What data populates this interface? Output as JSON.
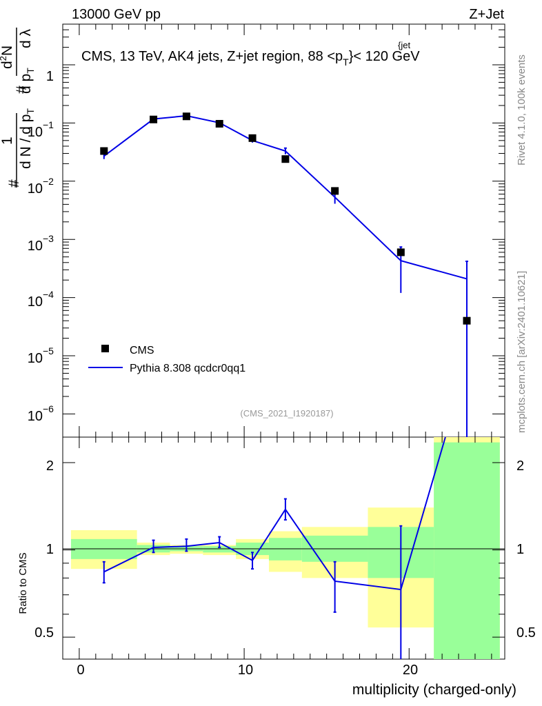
{
  "header": {
    "left": "13000 GeV pp",
    "right": "Z+Jet"
  },
  "side_labels": {
    "rivet": "Rivet 4.1.0,  100k events",
    "source": "mcplots.cern.ch [arXiv:2401.10621]"
  },
  "upper": {
    "title": "CMS, 13 TeV, AK4 jets, Z+jet region, 88 <p",
    "title_sup": "{jet",
    "title_sub": "T",
    "title_end": "}< 120 GeV",
    "ylabel": {
      "hash": "#",
      "one": "1",
      "dN_a": "d N / d p",
      "dN_a_sub": "T",
      "hash2": "#",
      "d2N": "d",
      "d2N_sup": "2",
      "d2N_end": "N",
      "dpt": "d p",
      "dpt_sub": "T",
      "dlambda": "d λ"
    },
    "y_ticks": [
      {
        "base": "1",
        "exp": ""
      },
      {
        "base": "10",
        "exp": "−1"
      },
      {
        "base": "10",
        "exp": "−2"
      },
      {
        "base": "10",
        "exp": "−3"
      },
      {
        "base": "10",
        "exp": "−4"
      },
      {
        "base": "10",
        "exp": "−5"
      },
      {
        "base": "10",
        "exp": "−6"
      }
    ],
    "legend": {
      "data_label": "CMS",
      "mc_label": "Pythia 8.308 qcdcr0qq1"
    },
    "analysis_id": "(CMS_2021_I1920187)"
  },
  "lower": {
    "ylabel": "Ratio to CMS",
    "y_ticks_left": [
      "2",
      "1",
      "0.5"
    ],
    "y_ticks_right": [
      "2",
      "1",
      "0.5"
    ]
  },
  "xaxis": {
    "label": "multiplicity (charged-only)",
    "ticks": [
      "0",
      "10",
      "20"
    ]
  },
  "colors": {
    "mc": "#0000e6",
    "data": "#000000",
    "band_inner": "#99ff99",
    "band_outer": "#ffff99"
  },
  "chart_data": {
    "type": "line",
    "x_range": [
      -1,
      25.8
    ],
    "upper": {
      "yscale": "log",
      "ylim": [
        4e-07,
        5
      ],
      "data": {
        "name": "CMS",
        "x": [
          1.5,
          4.5,
          6.5,
          8.5,
          10.5,
          12.5,
          15.5,
          19.5,
          23.5
        ],
        "y": [
          0.033,
          0.115,
          0.13,
          0.097,
          0.055,
          0.024,
          0.0068,
          0.0006,
          4e-05
        ]
      },
      "mc": {
        "name": "Pythia 8.308 qcdcr0qq1",
        "x": [
          1.5,
          4.5,
          6.5,
          8.5,
          10.5,
          12.5,
          15.5,
          19.5,
          23.5
        ],
        "y": [
          0.027,
          0.117,
          0.133,
          0.101,
          0.05,
          0.033,
          0.0053,
          0.00043,
          0.00021
        ],
        "yerr_lo": [
          0.024,
          0.113,
          0.129,
          0.097,
          0.046,
          0.029,
          0.0041,
          0.00012,
          1e-07
        ],
        "yerr_hi": [
          0.03,
          0.121,
          0.137,
          0.105,
          0.054,
          0.037,
          0.0065,
          0.00074,
          0.00042
        ]
      }
    },
    "lower": {
      "yscale": "log",
      "ylim": [
        0.42,
        2.45
      ],
      "reference": 1,
      "bins": [
        {
          "lo": -0.5,
          "hi": 3.5,
          "inner": [
            0.93,
            1.09
          ],
          "outer": [
            0.86,
            1.17
          ]
        },
        {
          "lo": 3.5,
          "hi": 5.5,
          "inner": [
            0.98,
            1.04
          ],
          "outer": [
            0.96,
            1.06
          ]
        },
        {
          "lo": 5.5,
          "hi": 7.5,
          "inner": [
            0.99,
            1.03
          ],
          "outer": [
            0.97,
            1.04
          ]
        },
        {
          "lo": 7.5,
          "hi": 9.5,
          "inner": [
            0.98,
            1.03
          ],
          "outer": [
            0.96,
            1.04
          ]
        },
        {
          "lo": 9.5,
          "hi": 11.5,
          "inner": [
            0.96,
            1.06
          ],
          "outer": [
            0.93,
            1.09
          ]
        },
        {
          "lo": 11.5,
          "hi": 13.5,
          "inner": [
            0.92,
            1.1
          ],
          "outer": [
            0.84,
            1.16
          ]
        },
        {
          "lo": 13.5,
          "hi": 17.5,
          "inner": [
            0.91,
            1.12
          ],
          "outer": [
            0.8,
            1.2
          ]
        },
        {
          "lo": 17.5,
          "hi": 21.5,
          "inner": [
            0.8,
            1.2
          ],
          "outer": [
            0.54,
            1.4
          ]
        },
        {
          "lo": 21.5,
          "hi": 25.5,
          "inner": [
            0.42,
            2.35
          ],
          "outer": [
            0.42,
            2.45
          ]
        }
      ],
      "ratio": {
        "x": [
          1.5,
          4.5,
          6.5,
          8.5,
          10.5,
          12.5,
          15.5,
          19.5,
          22.2
        ],
        "y": [
          0.84,
          1.02,
          1.03,
          1.06,
          0.92,
          1.38,
          0.78,
          0.73,
          2.45
        ],
        "yerr_lo": [
          0.77,
          0.98,
          0.99,
          1.02,
          0.86,
          1.27,
          0.61,
          0.42,
          2.45
        ],
        "yerr_hi": [
          0.91,
          1.08,
          1.09,
          1.11,
          0.98,
          1.5,
          0.91,
          1.21,
          2.45
        ]
      }
    }
  }
}
